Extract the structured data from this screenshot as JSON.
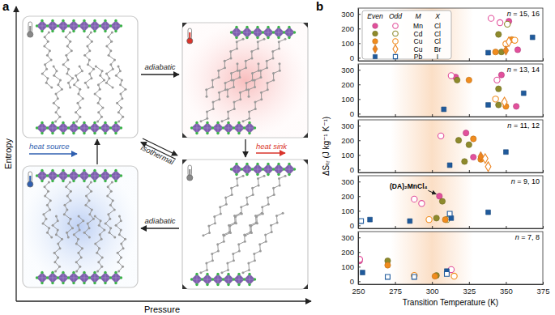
{
  "panel_a": {
    "label": "a",
    "ylabel": "Entropy",
    "xlabel": "Pressure",
    "top_arrow": "adiabatic",
    "bottom_arrow": "adiabatic",
    "diagonal_arrow": "isothermal",
    "heat_in": "heat source",
    "heat_out": "heat sink"
  },
  "panel_b": {
    "label": "b",
    "ylabel": "ΔSₜᵣ (J kg⁻¹ K⁻¹)",
    "shaded_range": [
      272,
      328
    ],
    "legend": {
      "headers": [
        "Even",
        "Odd",
        "M",
        "X"
      ],
      "rows": [
        {
          "M": "Mn",
          "X": "Cl",
          "color": "#e2509c",
          "marker": "circle"
        },
        {
          "M": "Cd",
          "X": "Cl",
          "color": "#8e8a2c",
          "marker": "circle"
        },
        {
          "M": "Cu",
          "X": "Cl",
          "color": "#f08c1e",
          "marker": "circle"
        },
        {
          "M": "Cu",
          "X": "Br",
          "color": "#ec8420",
          "marker": "diamond"
        },
        {
          "M": "Pb",
          "X": "I",
          "color": "#1f5a9c",
          "marker": "square"
        }
      ]
    }
  },
  "chart_data": [
    {
      "type": "scatter",
      "title": "n = 15, 16",
      "xlim": [
        250,
        375
      ],
      "xticks": [
        250,
        275,
        300,
        325,
        350,
        375
      ],
      "ylim": [
        -20,
        340
      ],
      "yticks": [
        0,
        100,
        200,
        300
      ],
      "tick_labels": "y",
      "series": [
        {
          "color": "#e2509c",
          "marker": "circle",
          "x": [
            352,
            358
          ],
          "values": [
            250,
            55
          ]
        },
        {
          "color": "#e2509c",
          "marker": "circle-open",
          "x": [
            340,
            346
          ],
          "values": [
            270,
            240
          ]
        },
        {
          "color": "#8e8a2c",
          "marker": "circle",
          "x": [
            345,
            347
          ],
          "values": [
            160,
            40
          ]
        },
        {
          "color": "#8e8a2c",
          "marker": "circle-open",
          "x": [
            351
          ],
          "values": [
            230
          ]
        },
        {
          "color": "#f08c1e",
          "marker": "circle",
          "x": [
            343,
            354
          ],
          "values": [
            40,
            125
          ]
        },
        {
          "color": "#f08c1e",
          "marker": "circle-open",
          "x": [
            350,
            356
          ],
          "values": [
            95,
            120
          ]
        },
        {
          "color": "#ec8420",
          "marker": "diamond",
          "x": [
            350
          ],
          "values": [
            50
          ]
        },
        {
          "color": "#ec8420",
          "marker": "diamond-open",
          "x": [
            352
          ],
          "values": [
            110
          ]
        },
        {
          "color": "#1f5a9c",
          "marker": "square",
          "x": [
            338,
            368
          ],
          "values": [
            35,
            140
          ]
        }
      ]
    },
    {
      "type": "scatter",
      "title": "n = 13, 14",
      "xlim": [
        250,
        375
      ],
      "xticks": [
        250,
        275,
        300,
        325,
        350,
        375
      ],
      "ylim": [
        -20,
        340
      ],
      "yticks": [
        0,
        100,
        200,
        300
      ],
      "tick_labels": "y",
      "series": [
        {
          "color": "#e2509c",
          "marker": "circle",
          "x": [
            316,
            347,
            357
          ],
          "values": [
            250,
            265,
            50
          ]
        },
        {
          "color": "#e2509c",
          "marker": "circle-open",
          "x": [
            313,
            344
          ],
          "values": [
            260,
            230
          ]
        },
        {
          "color": "#8e8a2c",
          "marker": "circle",
          "x": [
            317,
            345,
            345
          ],
          "values": [
            230,
            170,
            60
          ]
        },
        {
          "color": "#f08c1e",
          "marker": "circle",
          "x": [
            325,
            350
          ],
          "values": [
            230,
            50
          ]
        },
        {
          "color": "#f08c1e",
          "marker": "circle-open",
          "x": [
            343
          ],
          "values": [
            100
          ]
        },
        {
          "color": "#ec8420",
          "marker": "diamond-open",
          "x": [
            349
          ],
          "values": [
            80
          ]
        },
        {
          "color": "#1f5a9c",
          "marker": "square",
          "x": [
            308,
            338,
            362
          ],
          "values": [
            30,
            60,
            140
          ]
        }
      ]
    },
    {
      "type": "scatter",
      "title": "n = 11, 12",
      "xlim": [
        250,
        375
      ],
      "xticks": [
        250,
        275,
        300,
        325,
        350,
        375
      ],
      "ylim": [
        -20,
        340
      ],
      "yticks": [
        0,
        100,
        200,
        300
      ],
      "tick_labels": "y",
      "series": [
        {
          "color": "#e2509c",
          "marker": "circle",
          "x": [
            323,
            328
          ],
          "values": [
            250,
            85
          ]
        },
        {
          "color": "#e2509c",
          "marker": "circle-open",
          "x": [
            306
          ],
          "values": [
            230
          ]
        },
        {
          "color": "#8e8a2c",
          "marker": "circle",
          "x": [
            318,
            322,
            325
          ],
          "values": [
            200,
            55,
            170
          ]
        },
        {
          "color": "#f08c1e",
          "marker": "circle",
          "x": [
            328,
            333
          ],
          "values": [
            210,
            70
          ]
        },
        {
          "color": "#ec8420",
          "marker": "diamond",
          "x": [
            333
          ],
          "values": [
            90
          ]
        },
        {
          "color": "#ec8420",
          "marker": "diamond-open",
          "x": [
            336,
            338
          ],
          "values": [
            75,
            20
          ]
        },
        {
          "color": "#1f5a9c",
          "marker": "square",
          "x": [
            312,
            350
          ],
          "values": [
            30,
            120
          ]
        }
      ]
    },
    {
      "type": "scatter",
      "title": "n = 9, 10",
      "xlim": [
        250,
        375
      ],
      "xticks": [
        250,
        275,
        300,
        325,
        350,
        375
      ],
      "ylim": [
        -20,
        340
      ],
      "yticks": [
        0,
        100,
        200,
        300
      ],
      "tick_labels": "y",
      "annotations": [
        {
          "text": "(DA)₂MnCl₄",
          "x": 305,
          "y": 200
        }
      ],
      "series": [
        {
          "color": "#e2509c",
          "marker": "circle",
          "x": [
            305
          ],
          "values": [
            200
          ]
        },
        {
          "color": "#e2509c",
          "marker": "circle-open",
          "x": [
            288,
            293
          ],
          "values": [
            180,
            150
          ]
        },
        {
          "color": "#8e8a2c",
          "marker": "circle",
          "x": [
            303,
            307
          ],
          "values": [
            50,
            165
          ]
        },
        {
          "color": "#8e8a2c",
          "marker": "circle-open",
          "x": [
            310
          ],
          "values": [
            40
          ]
        },
        {
          "color": "#f08c1e",
          "marker": "circle",
          "x": [
            309
          ],
          "values": [
            40
          ]
        },
        {
          "color": "#f08c1e",
          "marker": "circle-open",
          "x": [
            298
          ],
          "values": [
            40
          ]
        },
        {
          "color": "#1f5a9c",
          "marker": "square",
          "x": [
            258,
            285,
            313,
            338
          ],
          "values": [
            40,
            30,
            50,
            90
          ]
        },
        {
          "color": "#1f5a9c",
          "marker": "square-open",
          "x": [
            252,
            312
          ],
          "values": [
            30,
            80
          ]
        }
      ]
    },
    {
      "type": "scatter",
      "title": "n = 7, 8",
      "xlim": [
        250,
        375
      ],
      "xticks": [
        250,
        275,
        300,
        325,
        350,
        375
      ],
      "ylim": [
        -20,
        340
      ],
      "yticks": [
        0,
        100,
        200,
        300
      ],
      "tick_labels": true,
      "xlabel": "Transition Temperature (K)",
      "series": [
        {
          "color": "#e2509c",
          "marker": "circle",
          "x": [
            251
          ],
          "values": [
            140
          ]
        },
        {
          "color": "#e2509c",
          "marker": "circle-open",
          "x": [
            251,
            313
          ],
          "values": [
            150,
            80
          ]
        },
        {
          "color": "#8e8a2c",
          "marker": "circle",
          "x": [
            270,
            303
          ],
          "values": [
            140,
            40
          ]
        },
        {
          "color": "#f08c1e",
          "marker": "circle",
          "x": [
            270,
            302
          ],
          "values": [
            110,
            35
          ]
        },
        {
          "color": "#f08c1e",
          "marker": "circle-open",
          "x": [
            288,
            315
          ],
          "values": [
            40,
            35
          ]
        },
        {
          "color": "#1f5a9c",
          "marker": "square",
          "x": [
            253,
            310
          ],
          "values": [
            60,
            70
          ]
        },
        {
          "color": "#1f5a9c",
          "marker": "square-open",
          "x": [
            270,
            288,
            310
          ],
          "values": [
            30,
            30,
            50
          ]
        }
      ]
    }
  ]
}
